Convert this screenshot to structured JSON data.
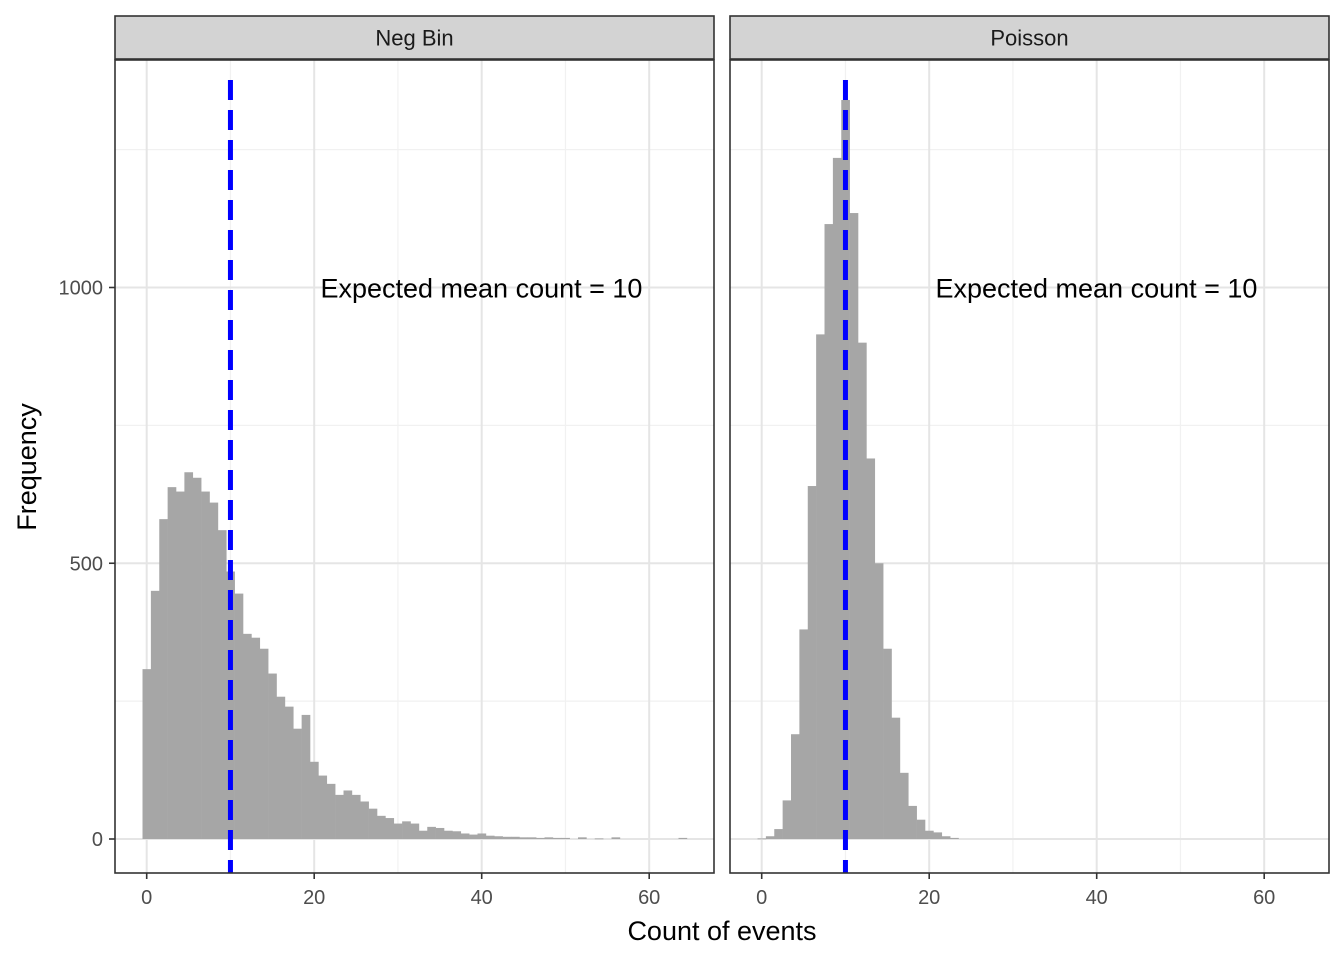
{
  "chart_data": {
    "type": "bar",
    "xlabel": "Count of events",
    "ylabel": "Frequency",
    "xlim": [
      -4,
      66
    ],
    "ylim": [
      -60,
      1410
    ],
    "x_ticks": [
      0,
      20,
      40,
      60
    ],
    "y_ticks": [
      0,
      500,
      1000
    ],
    "bin_width": 1,
    "grid": true,
    "bar_color": "#a6a6a6",
    "reference_line": {
      "x": 10,
      "color": "#0000ff",
      "style": "dashed"
    },
    "panels": [
      {
        "label": "Neg Bin",
        "annotation": "Expected mean count = 10",
        "bins": [
          {
            "x": 0,
            "y": 308
          },
          {
            "x": 1,
            "y": 450
          },
          {
            "x": 2,
            "y": 580
          },
          {
            "x": 3,
            "y": 638
          },
          {
            "x": 4,
            "y": 630
          },
          {
            "x": 5,
            "y": 665
          },
          {
            "x": 6,
            "y": 655
          },
          {
            "x": 7,
            "y": 630
          },
          {
            "x": 8,
            "y": 610
          },
          {
            "x": 9,
            "y": 560
          },
          {
            "x": 10,
            "y": 485
          },
          {
            "x": 11,
            "y": 445
          },
          {
            "x": 12,
            "y": 372
          },
          {
            "x": 13,
            "y": 365
          },
          {
            "x": 14,
            "y": 345
          },
          {
            "x": 15,
            "y": 300
          },
          {
            "x": 16,
            "y": 258
          },
          {
            "x": 17,
            "y": 240
          },
          {
            "x": 18,
            "y": 200
          },
          {
            "x": 19,
            "y": 225
          },
          {
            "x": 20,
            "y": 140
          },
          {
            "x": 21,
            "y": 115
          },
          {
            "x": 22,
            "y": 100
          },
          {
            "x": 23,
            "y": 80
          },
          {
            "x": 24,
            "y": 88
          },
          {
            "x": 25,
            "y": 80
          },
          {
            "x": 26,
            "y": 68
          },
          {
            "x": 27,
            "y": 55
          },
          {
            "x": 28,
            "y": 42
          },
          {
            "x": 29,
            "y": 38
          },
          {
            "x": 30,
            "y": 28
          },
          {
            "x": 31,
            "y": 32
          },
          {
            "x": 32,
            "y": 28
          },
          {
            "x": 33,
            "y": 15
          },
          {
            "x": 34,
            "y": 22
          },
          {
            "x": 35,
            "y": 20
          },
          {
            "x": 36,
            "y": 15
          },
          {
            "x": 37,
            "y": 14
          },
          {
            "x": 38,
            "y": 10
          },
          {
            "x": 39,
            "y": 8
          },
          {
            "x": 40,
            "y": 10
          },
          {
            "x": 41,
            "y": 6
          },
          {
            "x": 42,
            "y": 5
          },
          {
            "x": 43,
            "y": 4
          },
          {
            "x": 44,
            "y": 4
          },
          {
            "x": 45,
            "y": 3
          },
          {
            "x": 46,
            "y": 3
          },
          {
            "x": 47,
            "y": 2
          },
          {
            "x": 48,
            "y": 3
          },
          {
            "x": 49,
            "y": 2
          },
          {
            "x": 50,
            "y": 2
          },
          {
            "x": 52,
            "y": 3
          },
          {
            "x": 54,
            "y": 1
          },
          {
            "x": 56,
            "y": 3
          },
          {
            "x": 64,
            "y": 2
          }
        ]
      },
      {
        "label": "Poisson",
        "annotation": "Expected mean count = 10",
        "bins": [
          {
            "x": 0,
            "y": 1
          },
          {
            "x": 1,
            "y": 5
          },
          {
            "x": 2,
            "y": 18
          },
          {
            "x": 3,
            "y": 70
          },
          {
            "x": 4,
            "y": 190
          },
          {
            "x": 5,
            "y": 380
          },
          {
            "x": 6,
            "y": 640
          },
          {
            "x": 7,
            "y": 915
          },
          {
            "x": 8,
            "y": 1115
          },
          {
            "x": 9,
            "y": 1235
          },
          {
            "x": 10,
            "y": 1340
          },
          {
            "x": 11,
            "y": 1135
          },
          {
            "x": 12,
            "y": 900
          },
          {
            "x": 13,
            "y": 690
          },
          {
            "x": 14,
            "y": 500
          },
          {
            "x": 15,
            "y": 345
          },
          {
            "x": 16,
            "y": 220
          },
          {
            "x": 17,
            "y": 120
          },
          {
            "x": 18,
            "y": 60
          },
          {
            "x": 19,
            "y": 35
          },
          {
            "x": 20,
            "y": 15
          },
          {
            "x": 21,
            "y": 12
          },
          {
            "x": 22,
            "y": 5
          },
          {
            "x": 23,
            "y": 2
          }
        ]
      }
    ]
  }
}
